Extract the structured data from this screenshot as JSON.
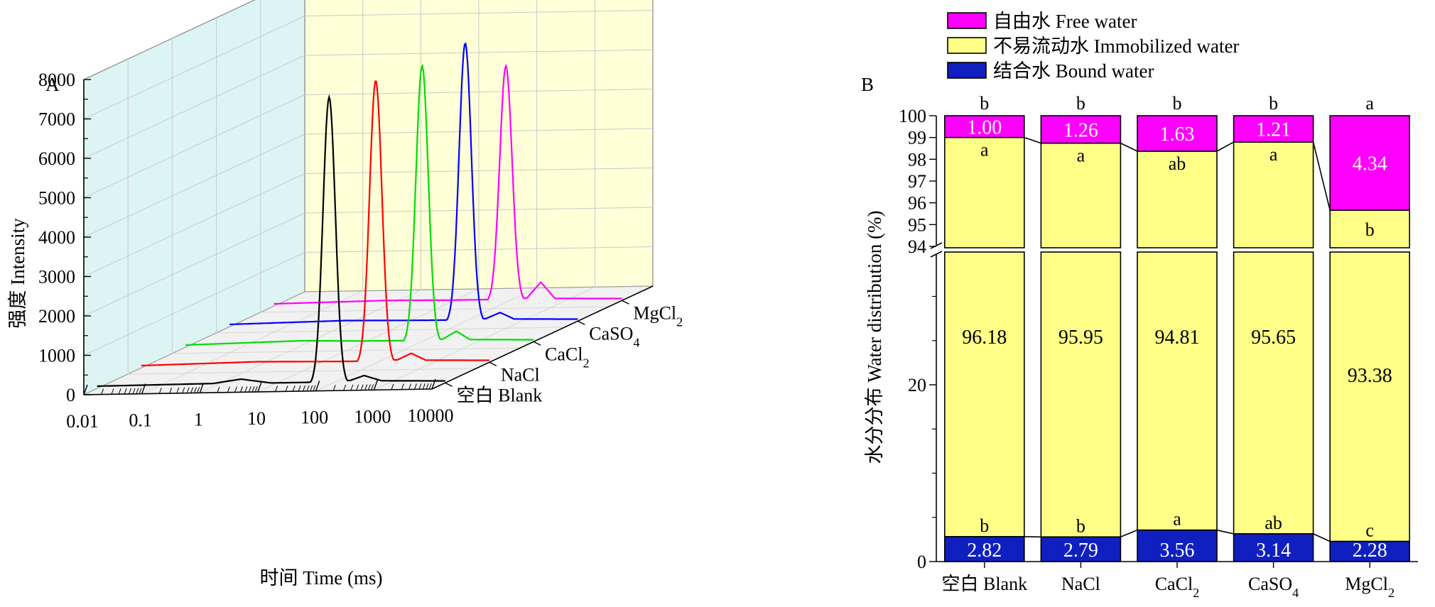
{
  "chart_data": [
    {
      "panel": "A",
      "type": "line",
      "ylabel": "强度 Intensity",
      "xlabel": "时间 Time (ms)",
      "x_scale": "log",
      "x_ticks": [
        "0.01",
        "0.1",
        "1",
        "10",
        "100",
        "1000",
        "10000"
      ],
      "y_ticks": [
        "0",
        "1000",
        "2000",
        "3000",
        "4000",
        "5000",
        "6000",
        "7000",
        "8000"
      ],
      "ylim": [
        0,
        8000
      ],
      "xlim": [
        0.01,
        10000
      ],
      "depth_labels": [
        "空白 Blank",
        "NaCl",
        "CaCl",
        "CaSO",
        "MgCl"
      ],
      "series": [
        {
          "name": "空白 Blank",
          "color": "#000000",
          "peak_x": 100,
          "peak_y": 7300,
          "points": [
            [
              0.01,
              60
            ],
            [
              0.1,
              70
            ],
            [
              1,
              80
            ],
            [
              3,
              180
            ],
            [
              10,
              70
            ],
            [
              40,
              70
            ],
            [
              60,
              2000
            ],
            [
              100,
              7300
            ],
            [
              160,
              2000
            ],
            [
              230,
              100
            ],
            [
              400,
              220
            ],
            [
              800,
              80
            ],
            [
              10000,
              50
            ]
          ]
        },
        {
          "name": "NaCl",
          "color": "#ff0000",
          "peak_x": 110,
          "peak_y": 7200,
          "points": [
            [
              0.01,
              60
            ],
            [
              1,
              110
            ],
            [
              10,
              90
            ],
            [
              50,
              80
            ],
            [
              70,
              2000
            ],
            [
              110,
              7200
            ],
            [
              180,
              2000
            ],
            [
              260,
              100
            ],
            [
              450,
              260
            ],
            [
              800,
              80
            ],
            [
              10000,
              50
            ]
          ]
        },
        {
          "name": "CaCl",
          "color": "#00dd00",
          "peak_x": 120,
          "peak_y": 7050,
          "points": [
            [
              0.01,
              60
            ],
            [
              1,
              120
            ],
            [
              10,
              90
            ],
            [
              55,
              80
            ],
            [
              80,
              2000
            ],
            [
              120,
              7050
            ],
            [
              190,
              2000
            ],
            [
              270,
              100
            ],
            [
              470,
              300
            ],
            [
              800,
              80
            ],
            [
              10000,
              50
            ]
          ]
        },
        {
          "name": "CaSO",
          "color": "#0000ff",
          "peak_x": 115,
          "peak_y": 7100,
          "points": [
            [
              0.01,
              60
            ],
            [
              1,
              110
            ],
            [
              10,
              90
            ],
            [
              55,
              80
            ],
            [
              75,
              2000
            ],
            [
              115,
              7100
            ],
            [
              185,
              2000
            ],
            [
              260,
              100
            ],
            [
              460,
              250
            ],
            [
              800,
              80
            ],
            [
              10000,
              50
            ]
          ]
        },
        {
          "name": "MgCl",
          "color": "#ff00ff",
          "peak_x": 100,
          "peak_y": 6000,
          "points": [
            [
              0.01,
              60
            ],
            [
              1,
              100
            ],
            [
              10,
              80
            ],
            [
              45,
              80
            ],
            [
              65,
              2000
            ],
            [
              100,
              6000
            ],
            [
              165,
              2000
            ],
            [
              230,
              100
            ],
            [
              400,
              500
            ],
            [
              700,
              80
            ],
            [
              10000,
              50
            ]
          ]
        }
      ]
    },
    {
      "panel": "B",
      "type": "bar",
      "stacked": true,
      "ylabel": "水分分布 Water distribution (%)",
      "broken_axis": true,
      "y_ticks_lower": [
        "0",
        "20"
      ],
      "y_ticks_upper": [
        "94",
        "95",
        "96",
        "97",
        "98",
        "99",
        "100"
      ],
      "categories": [
        "空白 Blank",
        "NaCl",
        "CaCl",
        "CaSO",
        "MgCl"
      ],
      "series": [
        {
          "name": "结合水 Bound water",
          "color": "#1020c0",
          "values": [
            2.82,
            2.79,
            3.56,
            3.14,
            2.28
          ],
          "labels": [
            "2.82",
            "2.79",
            "3.56",
            "3.14",
            "2.28"
          ],
          "letters": [
            "b",
            "b",
            "a",
            "ab",
            "c"
          ]
        },
        {
          "name": "不易流动水 Immobilized water",
          "color": "#ffff88",
          "values": [
            96.18,
            95.95,
            94.81,
            95.65,
            93.38
          ],
          "labels": [
            "96.18",
            "95.95",
            "94.81",
            "95.65",
            "93.38"
          ],
          "letters": [
            "a",
            "a",
            "ab",
            "a",
            "b"
          ]
        },
        {
          "name": "自由水 Free water",
          "color": "#ff00ff",
          "values": [
            1.0,
            1.26,
            1.63,
            1.21,
            4.34
          ],
          "labels": [
            "1.00",
            "1.26",
            "1.63",
            "1.21",
            "4.34"
          ],
          "letters": [
            "b",
            "b",
            "b",
            "b",
            "a"
          ]
        }
      ],
      "legend_position": "top"
    }
  ]
}
